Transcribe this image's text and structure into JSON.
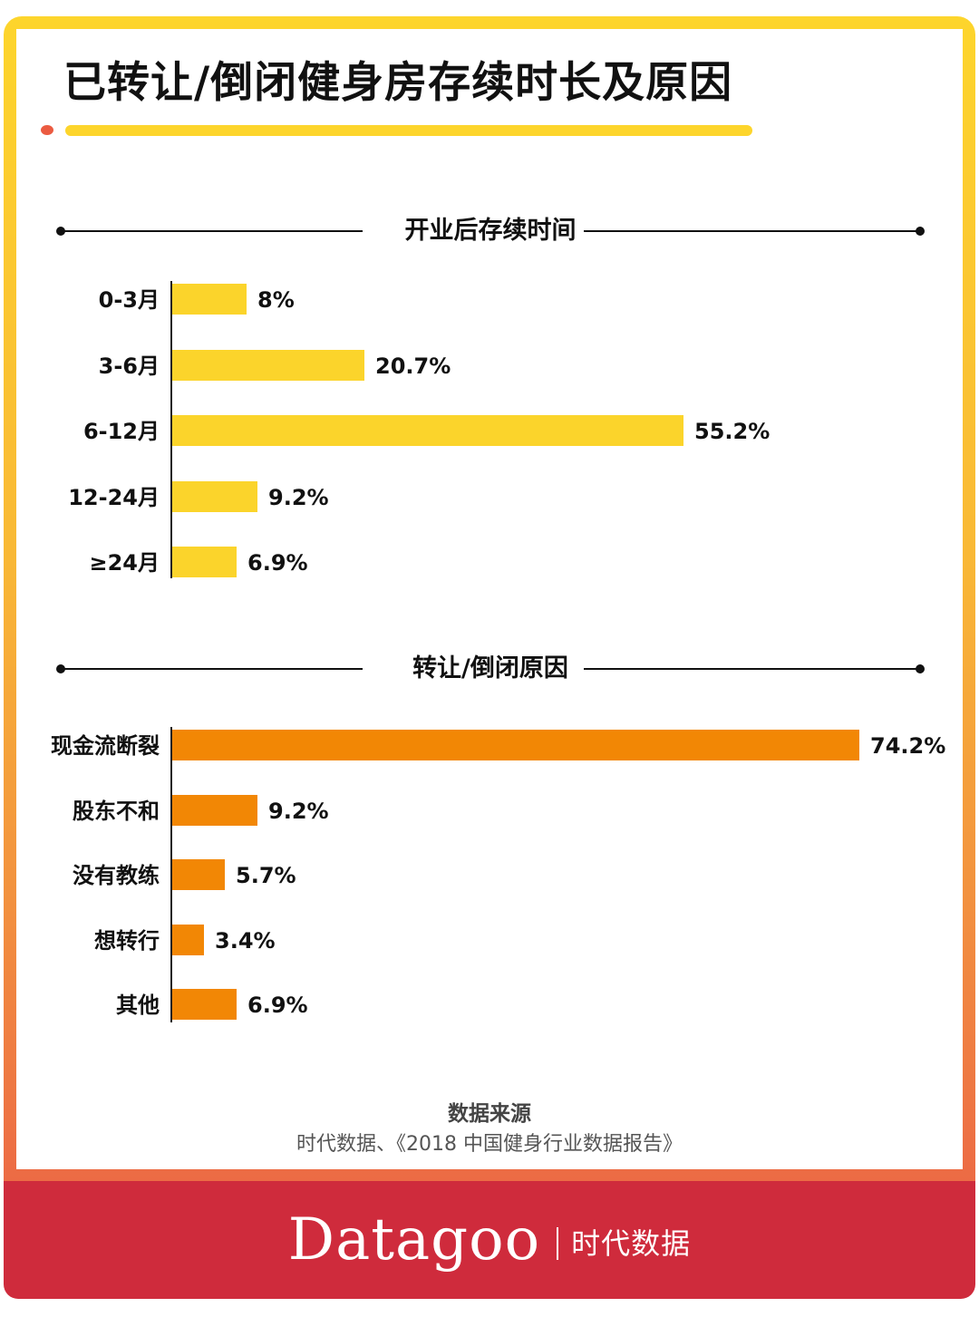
{
  "title": "已转让/倒闭健身房存续时长及原因",
  "colors": {
    "frame_top": "#FDD52C",
    "frame_bottom": "#EC6945",
    "bar_duration": "#FBD42B",
    "bar_reason": "#F28705",
    "footer": "#CF2B3C",
    "accent_dot": "#EB5B41"
  },
  "sections": {
    "duration": {
      "heading": "开业后存续时间"
    },
    "reason": {
      "heading": "转让/倒闭原因"
    }
  },
  "chart_data": [
    {
      "type": "bar",
      "orientation": "horizontal",
      "title": "开业后存续时间",
      "categories": [
        "0-3月",
        "3-6月",
        "6-12月",
        "12-24月",
        "≥24月"
      ],
      "values": [
        8,
        20.7,
        55.2,
        9.2,
        6.9
      ],
      "labels": [
        "8%",
        "20.7%",
        "55.2%",
        "9.2%",
        "6.9%"
      ],
      "unit": "%",
      "color": "#FBD42B",
      "xlabel": "",
      "ylabel": "",
      "grid": false,
      "legend": null
    },
    {
      "type": "bar",
      "orientation": "horizontal",
      "title": "转让/倒闭原因",
      "categories": [
        "现金流断裂",
        "股东不和",
        "没有教练",
        "想转行",
        "其他"
      ],
      "values": [
        74.2,
        9.2,
        5.7,
        3.4,
        6.9
      ],
      "labels": [
        "74.2%",
        "9.2%",
        "5.7%",
        "3.4%",
        "6.9%"
      ],
      "unit": "%",
      "color": "#F28705",
      "xlabel": "",
      "ylabel": "",
      "grid": false,
      "legend": null
    }
  ],
  "source": {
    "heading": "数据来源",
    "text": "时代数据、《2018 中国健身行业数据报告》"
  },
  "footer": {
    "brand_en": "Datagoo",
    "brand_cn": "时代数据"
  }
}
